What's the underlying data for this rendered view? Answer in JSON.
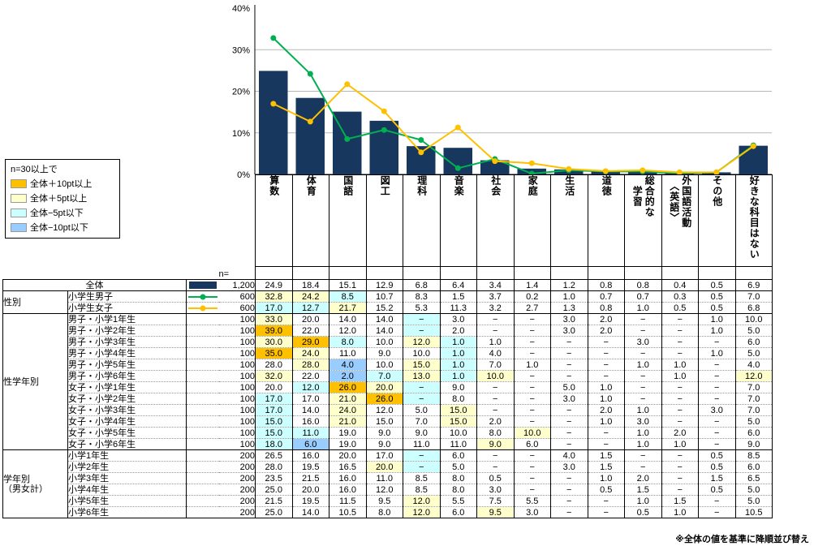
{
  "legend": {
    "title": "n=30以上で",
    "items": [
      {
        "label": "全体＋10pt以上",
        "color": "#FFC000"
      },
      {
        "label": "全体＋5pt以上",
        "color": "#FFFFCC"
      },
      {
        "label": "全体−5pt以下",
        "color": "#CCFFFF"
      },
      {
        "label": "全体−10pt以下",
        "color": "#99CCFF"
      }
    ]
  },
  "highlight_rules": {
    "plus10": 10,
    "plus5": 5,
    "minus5": -5,
    "minus10": -10
  },
  "chart_data": {
    "type": "bar",
    "subtype": "bar-plus-lines",
    "categories": [
      "算数",
      "体育",
      "国語",
      "図工",
      "理科",
      "音楽",
      "社会",
      "家庭",
      "生活",
      "道徳",
      "総合的な学習",
      "外国語活動〈英語〉",
      "その他",
      "好きな科目はない"
    ],
    "y_ticks": [
      "0%",
      "10%",
      "20%",
      "30%",
      "40%"
    ],
    "ylim": [
      0,
      40
    ],
    "gridlines": [
      10,
      20,
      30
    ],
    "legend_position": "table-marker-column",
    "series": [
      {
        "name": "全体",
        "kind": "bar",
        "color": "#17375E",
        "n": "1,200",
        "values": [
          24.9,
          18.4,
          15.1,
          12.9,
          6.8,
          6.4,
          3.4,
          1.4,
          1.2,
          0.8,
          0.8,
          0.4,
          0.5,
          6.9
        ]
      },
      {
        "name": "小学生男子",
        "kind": "line",
        "color": "#00B050",
        "n": "600",
        "values": [
          32.8,
          24.2,
          8.5,
          10.7,
          8.3,
          1.5,
          3.7,
          0.2,
          1.0,
          0.7,
          0.7,
          0.3,
          0.5,
          7.0
        ]
      },
      {
        "name": "小学生女子",
        "kind": "line",
        "color": "#FFC000",
        "n": "600",
        "values": [
          17.0,
          12.7,
          21.7,
          15.2,
          5.3,
          11.3,
          3.2,
          2.7,
          1.3,
          0.8,
          1.0,
          0.5,
          0.5,
          6.8
        ]
      }
    ]
  },
  "table": {
    "n_header": "n=",
    "column_labels": [
      "算数",
      "体育",
      "国語",
      "図工",
      "理科",
      "音楽",
      "社会",
      "家庭",
      "生活",
      "道徳",
      "総合的な\n学習",
      "外国語活動\n〈英語〉",
      "その他",
      "好きな科目はない"
    ],
    "groups": [
      {
        "label": "",
        "rows": [
          {
            "label": "全体",
            "is_base": true,
            "marker": {
              "type": "bar",
              "color": "#17375E"
            },
            "n": "1,200",
            "values": [
              "24.9",
              "18.4",
              "15.1",
              "12.9",
              "6.8",
              "6.4",
              "3.4",
              "1.4",
              "1.2",
              "0.8",
              "0.8",
              "0.4",
              "0.5",
              "6.9"
            ]
          }
        ]
      },
      {
        "label": "性別",
        "rows": [
          {
            "label": "小学生男子",
            "marker": {
              "type": "line",
              "color": "#00B050"
            },
            "n": "600",
            "values": [
              "32.8",
              "24.2",
              "8.5",
              "10.7",
              "8.3",
              "1.5",
              "3.7",
              "0.2",
              "1.0",
              "0.7",
              "0.7",
              "0.3",
              "0.5",
              "7.0"
            ]
          },
          {
            "label": "小学生女子",
            "marker": {
              "type": "line",
              "color": "#FFC000"
            },
            "n": "600",
            "values": [
              "17.0",
              "12.7",
              "21.7",
              "15.2",
              "5.3",
              "11.3",
              "3.2",
              "2.7",
              "1.3",
              "0.8",
              "1.0",
              "0.5",
              "0.5",
              "6.8"
            ]
          }
        ]
      },
      {
        "label": "性学年別",
        "rows": [
          {
            "label": "男子・小学1年生",
            "n": "100",
            "values": [
              "33.0",
              "20.0",
              "14.0",
              "14.0",
              "−",
              "3.0",
              "−",
              "−",
              "3.0",
              "2.0",
              "−",
              "−",
              "1.0",
              "10.0"
            ]
          },
          {
            "label": "男子・小学2年生",
            "n": "100",
            "values": [
              "39.0",
              "22.0",
              "12.0",
              "14.0",
              "−",
              "2.0",
              "−",
              "−",
              "3.0",
              "2.0",
              "−",
              "−",
              "1.0",
              "5.0"
            ]
          },
          {
            "label": "男子・小学3年生",
            "n": "100",
            "values": [
              "30.0",
              "29.0",
              "8.0",
              "10.0",
              "12.0",
              "1.0",
              "1.0",
              "−",
              "−",
              "−",
              "3.0",
              "−",
              "−",
              "6.0"
            ]
          },
          {
            "label": "男子・小学4年生",
            "n": "100",
            "values": [
              "35.0",
              "24.0",
              "11.0",
              "9.0",
              "10.0",
              "1.0",
              "4.0",
              "−",
              "−",
              "−",
              "−",
              "−",
              "1.0",
              "5.0"
            ]
          },
          {
            "label": "男子・小学5年生",
            "n": "100",
            "values": [
              "28.0",
              "28.0",
              "4.0",
              "10.0",
              "15.0",
              "1.0",
              "7.0",
              "1.0",
              "−",
              "−",
              "1.0",
              "1.0",
              "−",
              "4.0"
            ]
          },
          {
            "label": "男子・小学6年生",
            "n": "100",
            "values": [
              "32.0",
              "22.0",
              "2.0",
              "7.0",
              "13.0",
              "1.0",
              "10.0",
              "−",
              "−",
              "−",
              "−",
              "1.0",
              "−",
              "12.0"
            ]
          },
          {
            "label": "女子・小学1年生",
            "n": "100",
            "values": [
              "20.0",
              "12.0",
              "26.0",
              "20.0",
              "−",
              "9.0",
              "−",
              "−",
              "5.0",
              "1.0",
              "−",
              "−",
              "−",
              "7.0"
            ]
          },
          {
            "label": "女子・小学2年生",
            "n": "100",
            "values": [
              "17.0",
              "17.0",
              "21.0",
              "26.0",
              "−",
              "8.0",
              "−",
              "−",
              "3.0",
              "1.0",
              "−",
              "−",
              "−",
              "7.0"
            ]
          },
          {
            "label": "女子・小学3年生",
            "n": "100",
            "values": [
              "17.0",
              "14.0",
              "24.0",
              "12.0",
              "5.0",
              "15.0",
              "−",
              "−",
              "−",
              "2.0",
              "1.0",
              "−",
              "3.0",
              "7.0"
            ]
          },
          {
            "label": "女子・小学4年生",
            "n": "100",
            "values": [
              "15.0",
              "16.0",
              "21.0",
              "15.0",
              "7.0",
              "15.0",
              "2.0",
              "−",
              "−",
              "1.0",
              "3.0",
              "−",
              "−",
              "5.0"
            ]
          },
          {
            "label": "女子・小学5年生",
            "n": "100",
            "values": [
              "15.0",
              "11.0",
              "19.0",
              "9.0",
              "9.0",
              "10.0",
              "8.0",
              "10.0",
              "−",
              "−",
              "1.0",
              "2.0",
              "−",
              "6.0"
            ]
          },
          {
            "label": "女子・小学6年生",
            "n": "100",
            "values": [
              "18.0",
              "6.0",
              "19.0",
              "9.0",
              "11.0",
              "11.0",
              "9.0",
              "6.0",
              "−",
              "−",
              "1.0",
              "1.0",
              "−",
              "9.0"
            ]
          }
        ]
      },
      {
        "label": "学年別\n（男女計）",
        "rows": [
          {
            "label": "小学1年生",
            "n": "200",
            "values": [
              "26.5",
              "16.0",
              "20.0",
              "17.0",
              "−",
              "6.0",
              "−",
              "−",
              "4.0",
              "1.5",
              "−",
              "−",
              "0.5",
              "8.5"
            ]
          },
          {
            "label": "小学2年生",
            "n": "200",
            "values": [
              "28.0",
              "19.5",
              "16.5",
              "20.0",
              "−",
              "5.0",
              "−",
              "−",
              "3.0",
              "1.5",
              "−",
              "−",
              "0.5",
              "6.0"
            ]
          },
          {
            "label": "小学3年生",
            "n": "200",
            "values": [
              "23.5",
              "21.5",
              "16.0",
              "11.0",
              "8.5",
              "8.0",
              "0.5",
              "−",
              "−",
              "1.0",
              "2.0",
              "−",
              "1.5",
              "6.5"
            ]
          },
          {
            "label": "小学4年生",
            "n": "200",
            "values": [
              "25.0",
              "20.0",
              "16.0",
              "12.0",
              "8.5",
              "8.0",
              "3.0",
              "−",
              "−",
              "0.5",
              "1.5",
              "−",
              "0.5",
              "5.0"
            ]
          },
          {
            "label": "小学5年生",
            "n": "200",
            "values": [
              "21.5",
              "19.5",
              "11.5",
              "9.5",
              "12.0",
              "5.5",
              "7.5",
              "5.5",
              "−",
              "−",
              "1.0",
              "1.5",
              "−",
              "5.0"
            ]
          },
          {
            "label": "小学6年生",
            "n": "200",
            "values": [
              "25.0",
              "14.0",
              "10.5",
              "8.0",
              "12.0",
              "6.0",
              "9.5",
              "3.0",
              "−",
              "−",
              "0.5",
              "1.0",
              "−",
              "10.5"
            ]
          }
        ]
      }
    ]
  },
  "footnote": "※全体の値を基準に降順並び替え"
}
